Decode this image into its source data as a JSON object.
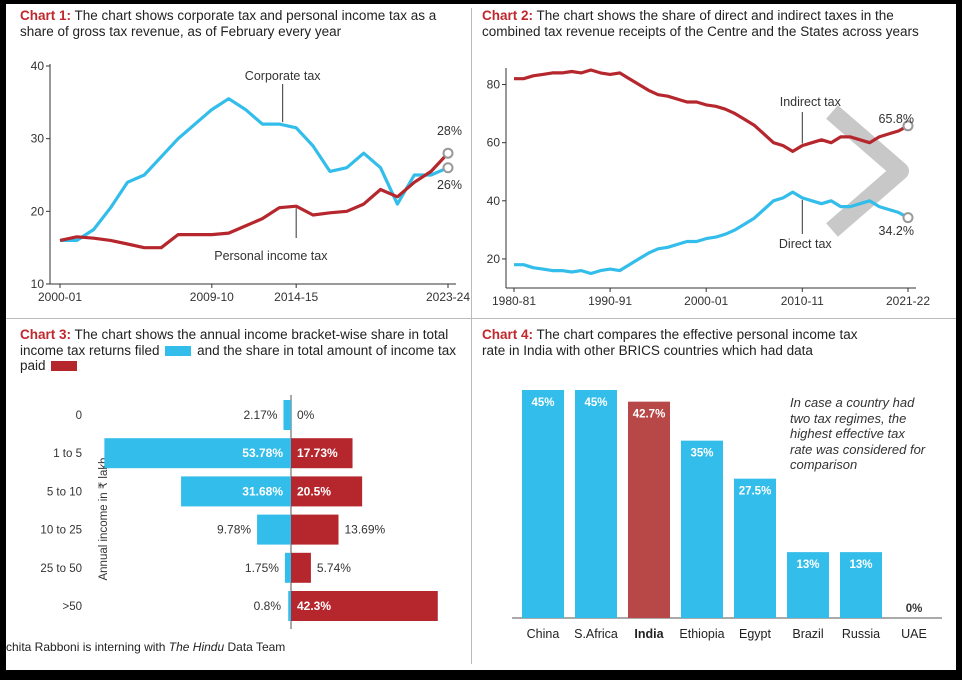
{
  "colors": {
    "blue": "#33bdea",
    "red": "#b5272d",
    "india": "#b84747",
    "label": "#c0282d"
  },
  "chart_data": [
    {
      "type": "line",
      "title_label": "Chart 1:",
      "title": "The chart shows corporate tax and personal income tax as a share of gross tax revenue, as of February every year",
      "x_ticks": [
        "2000-01",
        "2009-10",
        "2014-15",
        "2023-24"
      ],
      "x_tick_index": [
        0,
        9,
        14,
        23
      ],
      "ylim": [
        10,
        40
      ],
      "y_ticks": [
        10,
        20,
        30,
        40
      ],
      "series": [
        {
          "name": "Corporate tax",
          "color": "#33bdea",
          "values": [
            16.0,
            16.0,
            17.5,
            20.5,
            24.0,
            25.0,
            27.5,
            30.0,
            32.0,
            34.0,
            35.5,
            34.0,
            32.0,
            32.0,
            31.5,
            29.0,
            25.5,
            26.0,
            28.0,
            26.0,
            21.0,
            25.0,
            25.0,
            26.0
          ]
        },
        {
          "name": "Personal income tax",
          "color": "#b5272d",
          "values": [
            16.0,
            16.5,
            16.3,
            16.0,
            15.5,
            15.0,
            15.0,
            16.8,
            16.8,
            16.8,
            17.0,
            18.0,
            19.0,
            20.5,
            20.7,
            19.5,
            19.8,
            20.0,
            21.0,
            23.0,
            22.0,
            24.0,
            25.5,
            28.0
          ]
        }
      ],
      "end_labels": [
        "28%",
        "26%"
      ]
    },
    {
      "type": "line",
      "title_label": "Chart 2:",
      "title": "The chart shows the share of direct and indirect taxes in the combined tax revenue receipts of the Centre and the States across years",
      "x_ticks": [
        "1980-81",
        "1990-91",
        "2000-01",
        "2010-11",
        "2021-22"
      ],
      "x_tick_index": [
        0,
        10,
        20,
        30,
        41
      ],
      "ylim": [
        10,
        85
      ],
      "y_ticks": [
        20,
        40,
        60,
        80
      ],
      "series": [
        {
          "name": "Indirect tax",
          "color": "#b5272d",
          "values": [
            82.0,
            82.0,
            83.0,
            83.5,
            84.0,
            84.0,
            84.5,
            84.0,
            85.0,
            84.0,
            83.5,
            84.0,
            82.0,
            80.0,
            78.0,
            76.5,
            76.0,
            75.0,
            74.0,
            74.0,
            73.0,
            72.5,
            71.5,
            70.0,
            68.0,
            66.0,
            63.0,
            60.0,
            59.0,
            57.0,
            59.0,
            60.0,
            61.0,
            60.0,
            62.0,
            62.0,
            61.0,
            60.0,
            62.0,
            63.0,
            64.0,
            65.8
          ]
        },
        {
          "name": "Direct tax",
          "color": "#33bdea",
          "values": [
            18.0,
            18.0,
            17.0,
            16.5,
            16.0,
            16.0,
            15.5,
            16.0,
            15.0,
            16.0,
            16.5,
            16.0,
            18.0,
            20.0,
            22.0,
            23.5,
            24.0,
            25.0,
            26.0,
            26.0,
            27.0,
            27.5,
            28.5,
            30.0,
            32.0,
            34.0,
            37.0,
            40.0,
            41.0,
            43.0,
            41.0,
            40.0,
            39.0,
            40.0,
            38.0,
            38.0,
            39.0,
            40.0,
            38.0,
            37.0,
            36.0,
            34.2
          ]
        }
      ],
      "end_labels": [
        "65.8%",
        "34.2%"
      ]
    },
    {
      "type": "bar",
      "orientation": "horizontal-diverging",
      "title_label": "Chart 3:",
      "title_part1": "The chart shows the annual income bracket-wise share in total income tax returns filed",
      "title_part2": "and the share in total amount of income tax paid",
      "ylabel": "Annual income in ₹ lakh",
      "categories": [
        "0",
        "1 to 5",
        "5 to 10",
        "10 to 25",
        "25 to 50",
        ">50"
      ],
      "returns_filed": [
        2.17,
        53.78,
        31.68,
        9.78,
        1.75,
        0.8
      ],
      "returns_labels": [
        "2.17%",
        "53.78%",
        "31.68%",
        "9.78%",
        "1.75%",
        "0.8%"
      ],
      "tax_paid": [
        0,
        17.73,
        20.5,
        13.69,
        5.74,
        42.3
      ],
      "tax_labels": [
        "0%",
        "17.73%",
        "20.5%",
        "13.69%",
        "5.74%",
        "42.3%"
      ]
    },
    {
      "type": "bar",
      "title_label": "Chart 4:",
      "title": "The chart compares the effective personal income tax rate in India with other BRICS countries which had data",
      "categories": [
        "China",
        "S.Africa",
        "India",
        "Ethiopia",
        "Egypt",
        "Brazil",
        "Russia",
        "UAE"
      ],
      "values": [
        45,
        45,
        42.7,
        35,
        27.5,
        13,
        13,
        0
      ],
      "value_labels": [
        "45%",
        "45%",
        "42.7%",
        "35%",
        "27.5%",
        "13%",
        "13%",
        "0%"
      ],
      "highlight": "India",
      "ylim": [
        0,
        45
      ],
      "note": "In case a country had two tax regimes, the highest effective tax rate was considered for comparison"
    }
  ],
  "credit": {
    "before": "chita Rabboni is interning with ",
    "italic": "The Hindu",
    "after": " Data Team"
  }
}
